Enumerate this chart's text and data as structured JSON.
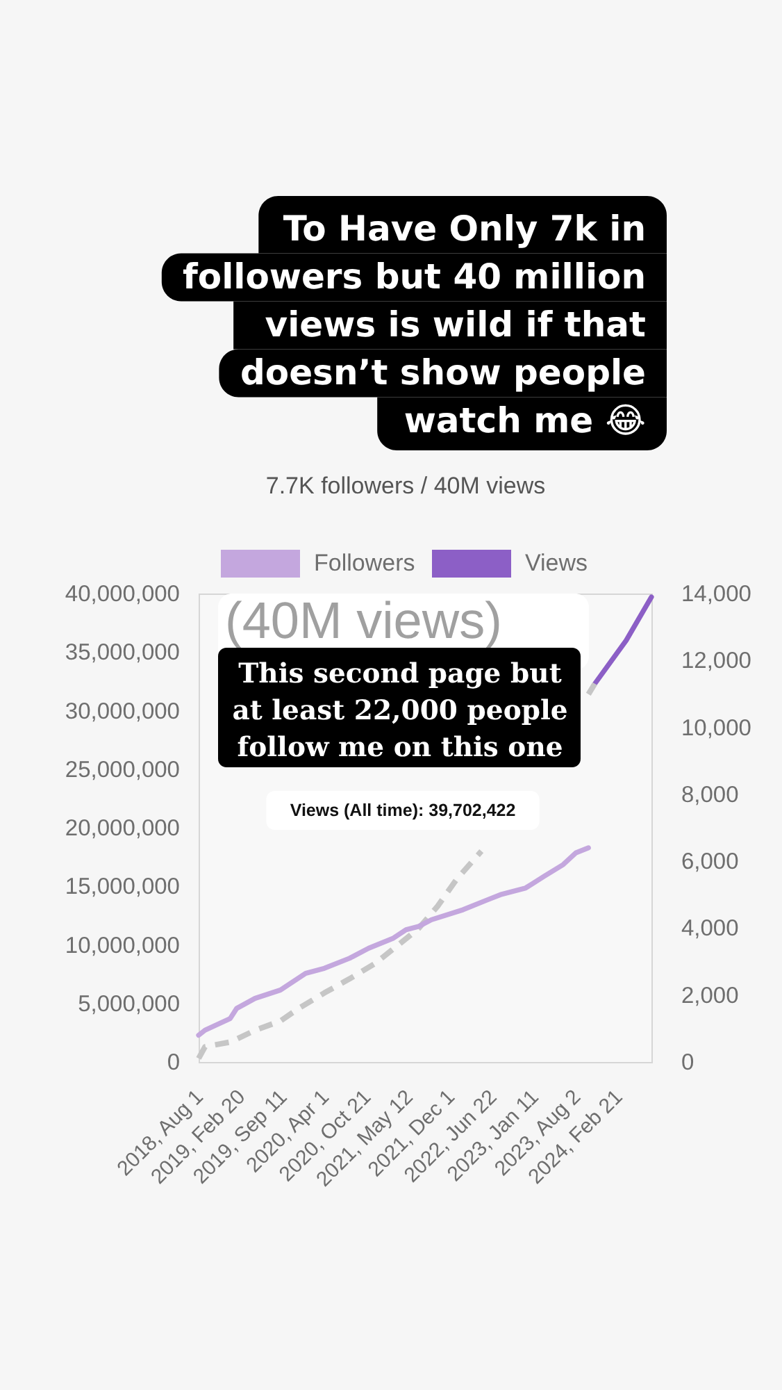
{
  "chart_data": {
    "type": "line",
    "title": "7.7K followers / 40M views",
    "annotations": [
      "To Have Only 7k in followers but 40 million views is wild if that doesn’t show people watch me 😂",
      "(40M views)",
      "This second page but at least 22,000 people follow me on this one",
      "Views (All time): 39,702,422"
    ],
    "xlim": [
      "2018-08-01",
      "2024-08-01"
    ],
    "xticks": [
      {
        "value": "2018-08-01",
        "label": "2018, Aug 1"
      },
      {
        "value": "2019-02-20",
        "label": "2019, Feb 20"
      },
      {
        "value": "2019-09-11",
        "label": "2019, Sep 11"
      },
      {
        "value": "2020-04-01",
        "label": "2020, Apr 1"
      },
      {
        "value": "2020-10-21",
        "label": "2020, Oct 21"
      },
      {
        "value": "2021-05-12",
        "label": "2021, May 12"
      },
      {
        "value": "2021-12-01",
        "label": "2021, Dec 1"
      },
      {
        "value": "2022-06-22",
        "label": "2022, Jun 22"
      },
      {
        "value": "2023-01-11",
        "label": "2023, Jan 11"
      },
      {
        "value": "2023-08-02",
        "label": "2023, Aug 2"
      },
      {
        "value": "2024-02-21",
        "label": "2024, Feb 21"
      }
    ],
    "ylim": [
      0,
      40000000
    ],
    "yticks": [
      0,
      {
        "value": 5000000,
        "label": "5,000,000"
      },
      {
        "value": 10000000,
        "label": "10,000,000"
      },
      {
        "value": 15000000,
        "label": "15,000,000"
      },
      {
        "value": 20000000,
        "label": "20,000,000"
      },
      {
        "value": 25000000,
        "label": "25,000,000"
      },
      {
        "value": 30000000,
        "label": "30,000,000"
      },
      {
        "value": 35000000,
        "label": "35,000,000"
      },
      {
        "value": 40000000,
        "label": "40,000,000"
      }
    ],
    "y2lim": [
      0,
      14000
    ],
    "y2ticks": [
      0,
      {
        "value": 2000,
        "label": "2,000"
      },
      {
        "value": 4000,
        "label": "4,000"
      },
      {
        "value": 6000,
        "label": "6,000"
      },
      {
        "value": 8000,
        "label": "8,000"
      },
      {
        "value": 10000,
        "label": "10,000"
      },
      {
        "value": 12000,
        "label": "12,000"
      },
      {
        "value": 14000,
        "label": "14,000"
      }
    ],
    "legend": "top",
    "series": [
      {
        "name": "Followers",
        "color": "#c4a7de",
        "axis": "y2",
        "x": [
          "2018-08",
          "2018-09",
          "2019-01",
          "2019-02",
          "2019-05",
          "2019-09",
          "2019-11",
          "2020-01",
          "2020-04",
          "2020-08",
          "2020-11",
          "2021-03",
          "2021-05",
          "2021-07",
          "2021-09",
          "2022-02",
          "2022-06",
          "2022-08",
          "2022-12",
          "2023-03",
          "2023-06",
          "2023-08",
          "2023-10"
        ],
        "values": [
          800,
          950,
          1300,
          1600,
          1900,
          2150,
          2400,
          2650,
          2800,
          3100,
          3400,
          3700,
          3950,
          4050,
          4250,
          4550,
          4850,
          5000,
          5200,
          5550,
          5900,
          6250,
          6400
        ]
      },
      {
        "name": "Views",
        "color": "#8c5fc6",
        "axis": "y",
        "x": [
          "2023-11",
          "2024-04",
          "2024-08"
        ],
        "values": [
          32300000,
          36000000,
          39702422
        ]
      },
      {
        "color": "#c6c6c6",
        "axis": "y",
        "line_style": "dashed",
        "x": [
          "2018-08",
          "2018-09",
          "2019-01",
          "2019-05",
          "2019-09",
          "2019-12",
          "2020-04",
          "2020-08",
          "2020-12",
          "2021-04",
          "2021-07",
          "2021-10",
          "2022-01",
          "2022-05",
          "2023-01",
          "2023-10",
          "2023-11"
        ],
        "values": [
          300000,
          1300000,
          1700000,
          2700000,
          3500000,
          4600000,
          5900000,
          7100000,
          8400000,
          10100000,
          11400000,
          13300000,
          15600000,
          18000000,
          null,
          31400000,
          32300000
        ]
      }
    ]
  }
}
